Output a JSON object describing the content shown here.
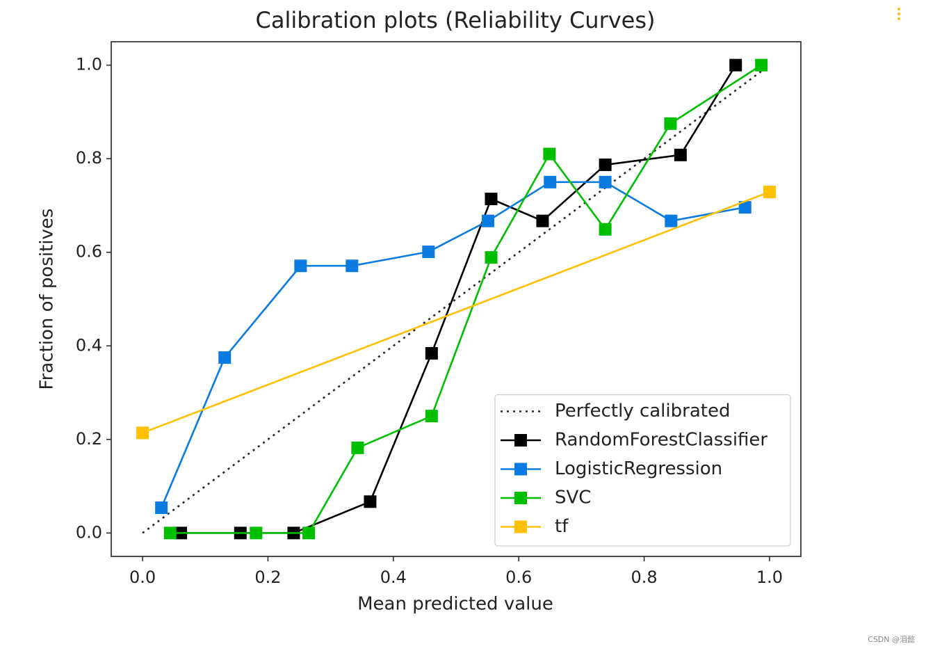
{
  "chart_data": {
    "type": "line",
    "title": "Calibration plots (Reliability Curves)",
    "x_label": "Mean predicted value",
    "y_label": "Fraction of positives",
    "xlim": [
      -0.05,
      1.05
    ],
    "ylim": [
      -0.05,
      1.05
    ],
    "xticks": [
      {
        "value": 0,
        "label": "0.0"
      },
      0.2,
      0.4,
      0.6,
      0.8,
      {
        "value": 1,
        "label": "1.0"
      }
    ],
    "yticks": [
      {
        "value": 0,
        "label": "0.0"
      },
      0.2,
      0.4,
      0.6,
      0.8,
      {
        "value": 1,
        "label": "1.0"
      }
    ],
    "grid": false,
    "legend": "lower right",
    "series": [
      {
        "name": "Perfectly calibrated",
        "color": "#222222",
        "linestyle": "dotted",
        "marker": "none",
        "x": [
          0,
          1
        ],
        "values": [
          0,
          1
        ]
      },
      {
        "name": "RandomForestClassifier",
        "color": "#000000",
        "linestyle": "solid",
        "marker": "square",
        "x": [
          0.061,
          0.156,
          0.241,
          0.363,
          0.461,
          0.556,
          0.638,
          0.738,
          0.858,
          0.946
        ],
        "values": [
          0,
          0,
          0,
          0.067,
          0.384,
          0.714,
          0.667,
          0.787,
          0.808,
          1.0
        ]
      },
      {
        "name": "LogisticRegression",
        "color": "#0a7be0",
        "linestyle": "solid",
        "marker": "square",
        "x": [
          0.03,
          0.131,
          0.252,
          0.334,
          0.456,
          0.551,
          0.65,
          0.738,
          0.843,
          0.961
        ],
        "values": [
          0.054,
          0.375,
          0.571,
          0.571,
          0.601,
          0.667,
          0.75,
          0.75,
          0.667,
          0.696
        ]
      },
      {
        "name": "SVC",
        "color": "#00bf00",
        "linestyle": "solid",
        "marker": "square",
        "x": [
          0.044,
          0.181,
          0.265,
          0.343,
          0.461,
          0.556,
          0.649,
          0.738,
          0.842,
          0.987
        ],
        "values": [
          0,
          0,
          0,
          0.182,
          0.25,
          0.589,
          0.81,
          0.649,
          0.875,
          1.0
        ]
      },
      {
        "name": "tf",
        "color": "#ffc000",
        "linestyle": "solid",
        "marker": "square",
        "x": [
          0.0,
          1.0
        ],
        "values": [
          0.214,
          0.729
        ]
      }
    ]
  },
  "watermark": "CSDN @泪懿"
}
